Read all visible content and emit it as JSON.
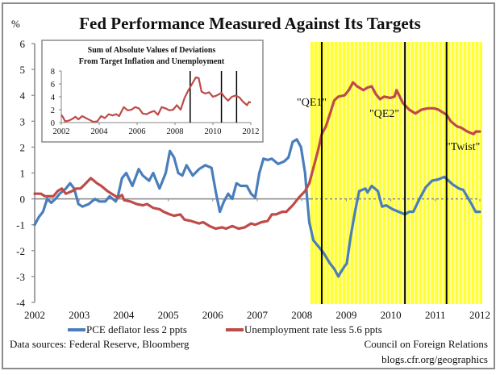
{
  "chart_data": [
    {
      "type": "line",
      "title": "Fed Performance Measured Against Its Targets",
      "ylabel": "%",
      "xlabel": "",
      "ylim": [
        -4,
        6
      ],
      "xlim": [
        2002,
        2012
      ],
      "yticks": [
        "6",
        "5",
        "4",
        "3",
        "2",
        "1",
        "0",
        "-1",
        "-2",
        "-3",
        "-4"
      ],
      "xticks": [
        "2002",
        "2003",
        "2004",
        "2005",
        "2006",
        "2007",
        "2008",
        "2009",
        "2010",
        "2011",
        "2012"
      ],
      "grid": false,
      "legend_position": "bottom",
      "shaded_region": {
        "from": 2008.25,
        "to": 2012.0,
        "color": "#ffff33",
        "pattern": "vertical-stripes"
      },
      "events": [
        {
          "label": "\"QE1\"",
          "x": 2008.9
        },
        {
          "label": "\"QE2\"",
          "x": 2010.9
        },
        {
          "label": "\"Twist\"",
          "x": 2011.9
        }
      ],
      "event_lines": [
        2008.9,
        2010.9,
        2011.9
      ],
      "zero_line": true,
      "series": [
        {
          "name": "PCE deflator  less 2 ppts",
          "color": "#4a7ebb",
          "points": [
            [
              2002.0,
              -1.0
            ],
            [
              2002.1,
              -0.7
            ],
            [
              2002.2,
              -0.5
            ],
            [
              2002.3,
              0.0
            ],
            [
              2002.4,
              -0.15
            ],
            [
              2002.5,
              0.0
            ],
            [
              2002.6,
              0.2
            ],
            [
              2002.75,
              0.4
            ],
            [
              2002.85,
              0.6
            ],
            [
              2002.95,
              0.4
            ],
            [
              2003.05,
              -0.2
            ],
            [
              2003.15,
              -0.3
            ],
            [
              2003.3,
              -0.2
            ],
            [
              2003.45,
              0.0
            ],
            [
              2003.55,
              -0.1
            ],
            [
              2003.7,
              -0.1
            ],
            [
              2003.8,
              0.1
            ],
            [
              2003.95,
              -0.1
            ],
            [
              2004.0,
              0.1
            ],
            [
              2004.1,
              0.8
            ],
            [
              2004.2,
              1.0
            ],
            [
              2004.35,
              0.5
            ],
            [
              2004.5,
              1.15
            ],
            [
              2004.6,
              0.9
            ],
            [
              2004.75,
              0.7
            ],
            [
              2004.85,
              1.0
            ],
            [
              2005.0,
              0.4
            ],
            [
              2005.15,
              1.0
            ],
            [
              2005.25,
              1.85
            ],
            [
              2005.35,
              1.6
            ],
            [
              2005.45,
              1.0
            ],
            [
              2005.55,
              0.9
            ],
            [
              2005.65,
              1.3
            ],
            [
              2005.8,
              0.9
            ],
            [
              2005.95,
              1.15
            ],
            [
              2006.1,
              1.3
            ],
            [
              2006.25,
              1.2
            ],
            [
              2006.35,
              0.3
            ],
            [
              2006.45,
              -0.5
            ],
            [
              2006.55,
              -0.1
            ],
            [
              2006.65,
              0.2
            ],
            [
              2006.75,
              0.0
            ],
            [
              2006.85,
              0.6
            ],
            [
              2006.95,
              0.5
            ],
            [
              2007.1,
              0.5
            ],
            [
              2007.2,
              0.2
            ],
            [
              2007.3,
              0.05
            ],
            [
              2007.4,
              1.0
            ],
            [
              2007.5,
              1.55
            ],
            [
              2007.6,
              1.5
            ],
            [
              2007.7,
              1.55
            ],
            [
              2007.85,
              1.35
            ],
            [
              2008.0,
              1.45
            ],
            [
              2008.1,
              1.6
            ],
            [
              2008.2,
              2.2
            ],
            [
              2008.3,
              2.3
            ],
            [
              2008.4,
              2.0
            ],
            [
              2008.5,
              1.0
            ],
            [
              2008.55,
              0.0
            ],
            [
              2008.6,
              -0.9
            ],
            [
              2008.7,
              -1.6
            ],
            [
              2008.8,
              -1.8
            ],
            [
              2008.9,
              -2.0
            ],
            [
              2008.95,
              -2.1
            ],
            [
              2009.1,
              -2.5
            ],
            [
              2009.2,
              -2.7
            ],
            [
              2009.3,
              -3.0
            ],
            [
              2009.35,
              -2.85
            ],
            [
              2009.45,
              -2.6
            ],
            [
              2009.5,
              -2.5
            ],
            [
              2009.6,
              -1.4
            ],
            [
              2009.7,
              -0.5
            ],
            [
              2009.8,
              0.3
            ],
            [
              2009.95,
              0.4
            ],
            [
              2010.0,
              0.25
            ],
            [
              2010.1,
              0.5
            ],
            [
              2010.25,
              0.3
            ],
            [
              2010.35,
              -0.3
            ],
            [
              2010.45,
              -0.25
            ],
            [
              2010.6,
              -0.4
            ],
            [
              2010.75,
              -0.5
            ],
            [
              2010.9,
              -0.6
            ],
            [
              2011.0,
              -0.5
            ],
            [
              2011.1,
              -0.5
            ],
            [
              2011.25,
              0.0
            ],
            [
              2011.4,
              0.45
            ],
            [
              2011.55,
              0.7
            ],
            [
              2011.7,
              0.75
            ],
            [
              2011.85,
              0.85
            ],
            [
              2011.95,
              0.7
            ],
            [
              2012.05,
              0.55
            ],
            [
              2012.2,
              0.4
            ],
            [
              2012.3,
              0.35
            ],
            [
              2012.5,
              -0.2
            ],
            [
              2012.6,
              -0.5
            ],
            [
              2012.7,
              -0.5
            ]
          ]
        },
        {
          "name": "Unemployment rate less 5.6 ppts",
          "color": "#be4b48",
          "points": [
            [
              2002.0,
              0.2
            ],
            [
              2002.15,
              0.2
            ],
            [
              2002.25,
              0.1
            ],
            [
              2002.45,
              0.1
            ],
            [
              2002.55,
              0.3
            ],
            [
              2002.65,
              0.4
            ],
            [
              2002.75,
              0.2
            ],
            [
              2002.9,
              0.3
            ],
            [
              2003.0,
              0.4
            ],
            [
              2003.1,
              0.4
            ],
            [
              2003.2,
              0.55
            ],
            [
              2003.35,
              0.8
            ],
            [
              2003.5,
              0.6
            ],
            [
              2003.6,
              0.5
            ],
            [
              2003.75,
              0.3
            ],
            [
              2003.9,
              0.15
            ],
            [
              2004.0,
              0.05
            ],
            [
              2004.1,
              0.15
            ],
            [
              2004.15,
              -0.05
            ],
            [
              2004.3,
              -0.1
            ],
            [
              2004.45,
              -0.2
            ],
            [
              2004.6,
              -0.25
            ],
            [
              2004.7,
              -0.2
            ],
            [
              2004.85,
              -0.35
            ],
            [
              2005.0,
              -0.4
            ],
            [
              2005.1,
              -0.5
            ],
            [
              2005.25,
              -0.6
            ],
            [
              2005.35,
              -0.65
            ],
            [
              2005.5,
              -0.6
            ],
            [
              2005.6,
              -0.8
            ],
            [
              2005.75,
              -0.85
            ],
            [
              2005.95,
              -0.95
            ],
            [
              2006.05,
              -0.9
            ],
            [
              2006.2,
              -1.05
            ],
            [
              2006.35,
              -1.15
            ],
            [
              2006.5,
              -1.1
            ],
            [
              2006.6,
              -1.15
            ],
            [
              2006.75,
              -1.05
            ],
            [
              2006.9,
              -1.15
            ],
            [
              2007.05,
              -1.1
            ],
            [
              2007.2,
              -0.95
            ],
            [
              2007.3,
              -1.0
            ],
            [
              2007.45,
              -0.9
            ],
            [
              2007.6,
              -0.85
            ],
            [
              2007.7,
              -0.6
            ],
            [
              2007.8,
              -0.6
            ],
            [
              2007.95,
              -0.5
            ],
            [
              2008.05,
              -0.5
            ],
            [
              2008.2,
              -0.25
            ],
            [
              2008.35,
              0.05
            ],
            [
              2008.5,
              0.3
            ],
            [
              2008.6,
              0.6
            ],
            [
              2008.7,
              1.2
            ],
            [
              2008.8,
              1.8
            ],
            [
              2008.9,
              2.5
            ],
            [
              2009.0,
              2.8
            ],
            [
              2009.1,
              3.3
            ],
            [
              2009.2,
              3.8
            ],
            [
              2009.3,
              3.95
            ],
            [
              2009.45,
              4.0
            ],
            [
              2009.55,
              4.2
            ],
            [
              2009.65,
              4.5
            ],
            [
              2009.75,
              4.35
            ],
            [
              2009.9,
              4.2
            ],
            [
              2010.0,
              4.3
            ],
            [
              2010.1,
              4.35
            ],
            [
              2010.2,
              4.05
            ],
            [
              2010.3,
              3.85
            ],
            [
              2010.4,
              3.95
            ],
            [
              2010.55,
              3.9
            ],
            [
              2010.65,
              3.95
            ],
            [
              2010.7,
              4.2
            ],
            [
              2010.85,
              3.7
            ],
            [
              2011.0,
              3.45
            ],
            [
              2011.15,
              3.3
            ],
            [
              2011.3,
              3.45
            ],
            [
              2011.45,
              3.5
            ],
            [
              2011.6,
              3.5
            ],
            [
              2011.7,
              3.45
            ],
            [
              2011.9,
              3.25
            ],
            [
              2012.0,
              3.0
            ],
            [
              2012.15,
              2.8
            ],
            [
              2012.25,
              2.75
            ],
            [
              2012.4,
              2.6
            ],
            [
              2012.55,
              2.5
            ],
            [
              2012.6,
              2.6
            ],
            [
              2012.7,
              2.6
            ]
          ]
        }
      ]
    },
    {
      "type": "line",
      "title": "Sum of Absolute Values of Deviations From Target Inflation and Unemployment",
      "title_lines": [
        "Sum of Absolute Values of Deviations",
        "From Target Inflation and Unemployment"
      ],
      "ylim": [
        0,
        8
      ],
      "xlim": [
        2002,
        2012
      ],
      "yticks": [
        "8",
        "6",
        "4",
        "2",
        "0"
      ],
      "xticks": [
        "2002",
        "2004",
        "2006",
        "2008",
        "2010",
        "2012"
      ],
      "event_lines": [
        2008.8,
        2010.45,
        2011.25
      ],
      "series": [
        {
          "name": "Sum of absolute deviations",
          "color": "#be4b48",
          "points": [
            [
              2002.0,
              1.2
            ],
            [
              2002.1,
              0.8
            ],
            [
              2002.2,
              0.2
            ],
            [
              2002.4,
              0.3
            ],
            [
              2002.6,
              0.6
            ],
            [
              2002.75,
              0.9
            ],
            [
              2002.9,
              0.5
            ],
            [
              2003.1,
              1.0
            ],
            [
              2003.3,
              0.7
            ],
            [
              2003.5,
              0.4
            ],
            [
              2003.7,
              0.1
            ],
            [
              2003.9,
              0.2
            ],
            [
              2004.1,
              1.0
            ],
            [
              2004.3,
              0.7
            ],
            [
              2004.5,
              1.3
            ],
            [
              2004.7,
              1.1
            ],
            [
              2004.9,
              1.3
            ],
            [
              2005.05,
              1.0
            ],
            [
              2005.3,
              2.4
            ],
            [
              2005.5,
              1.9
            ],
            [
              2005.7,
              2.0
            ],
            [
              2005.9,
              2.4
            ],
            [
              2006.1,
              2.2
            ],
            [
              2006.3,
              1.4
            ],
            [
              2006.5,
              1.3
            ],
            [
              2006.7,
              1.6
            ],
            [
              2006.9,
              1.8
            ],
            [
              2007.1,
              1.2
            ],
            [
              2007.3,
              2.4
            ],
            [
              2007.5,
              2.2
            ],
            [
              2007.7,
              1.9
            ],
            [
              2007.9,
              2.0
            ],
            [
              2008.1,
              2.7
            ],
            [
              2008.3,
              2.0
            ],
            [
              2008.5,
              3.8
            ],
            [
              2008.7,
              5.0
            ],
            [
              2008.9,
              6.0
            ],
            [
              2009.1,
              7.0
            ],
            [
              2009.25,
              6.9
            ],
            [
              2009.4,
              4.8
            ],
            [
              2009.6,
              4.5
            ],
            [
              2009.8,
              4.7
            ],
            [
              2010.0,
              4.0
            ],
            [
              2010.2,
              4.2
            ],
            [
              2010.45,
              4.6
            ],
            [
              2010.6,
              4.0
            ],
            [
              2010.8,
              3.4
            ],
            [
              2011.0,
              4.0
            ],
            [
              2011.2,
              4.2
            ],
            [
              2011.4,
              3.9
            ],
            [
              2011.6,
              3.2
            ],
            [
              2011.8,
              2.7
            ],
            [
              2011.9,
              3.2
            ],
            [
              2012.0,
              3.1
            ]
          ]
        }
      ]
    }
  ],
  "legend": {
    "pce": "PCE deflator  less 2 ppts",
    "unemployment": "Unemployment  rate less 5.6 ppts"
  },
  "footer": {
    "sources": "Data sources: Federal Reserve,  Bloomberg",
    "org": "Council on Foreign Relations",
    "url": "blogs.cfr.org/geographics"
  },
  "colors": {
    "pce": "#4a7ebb",
    "unemployment": "#be4b48",
    "shade": "#ffff33",
    "axis": "#868686"
  }
}
